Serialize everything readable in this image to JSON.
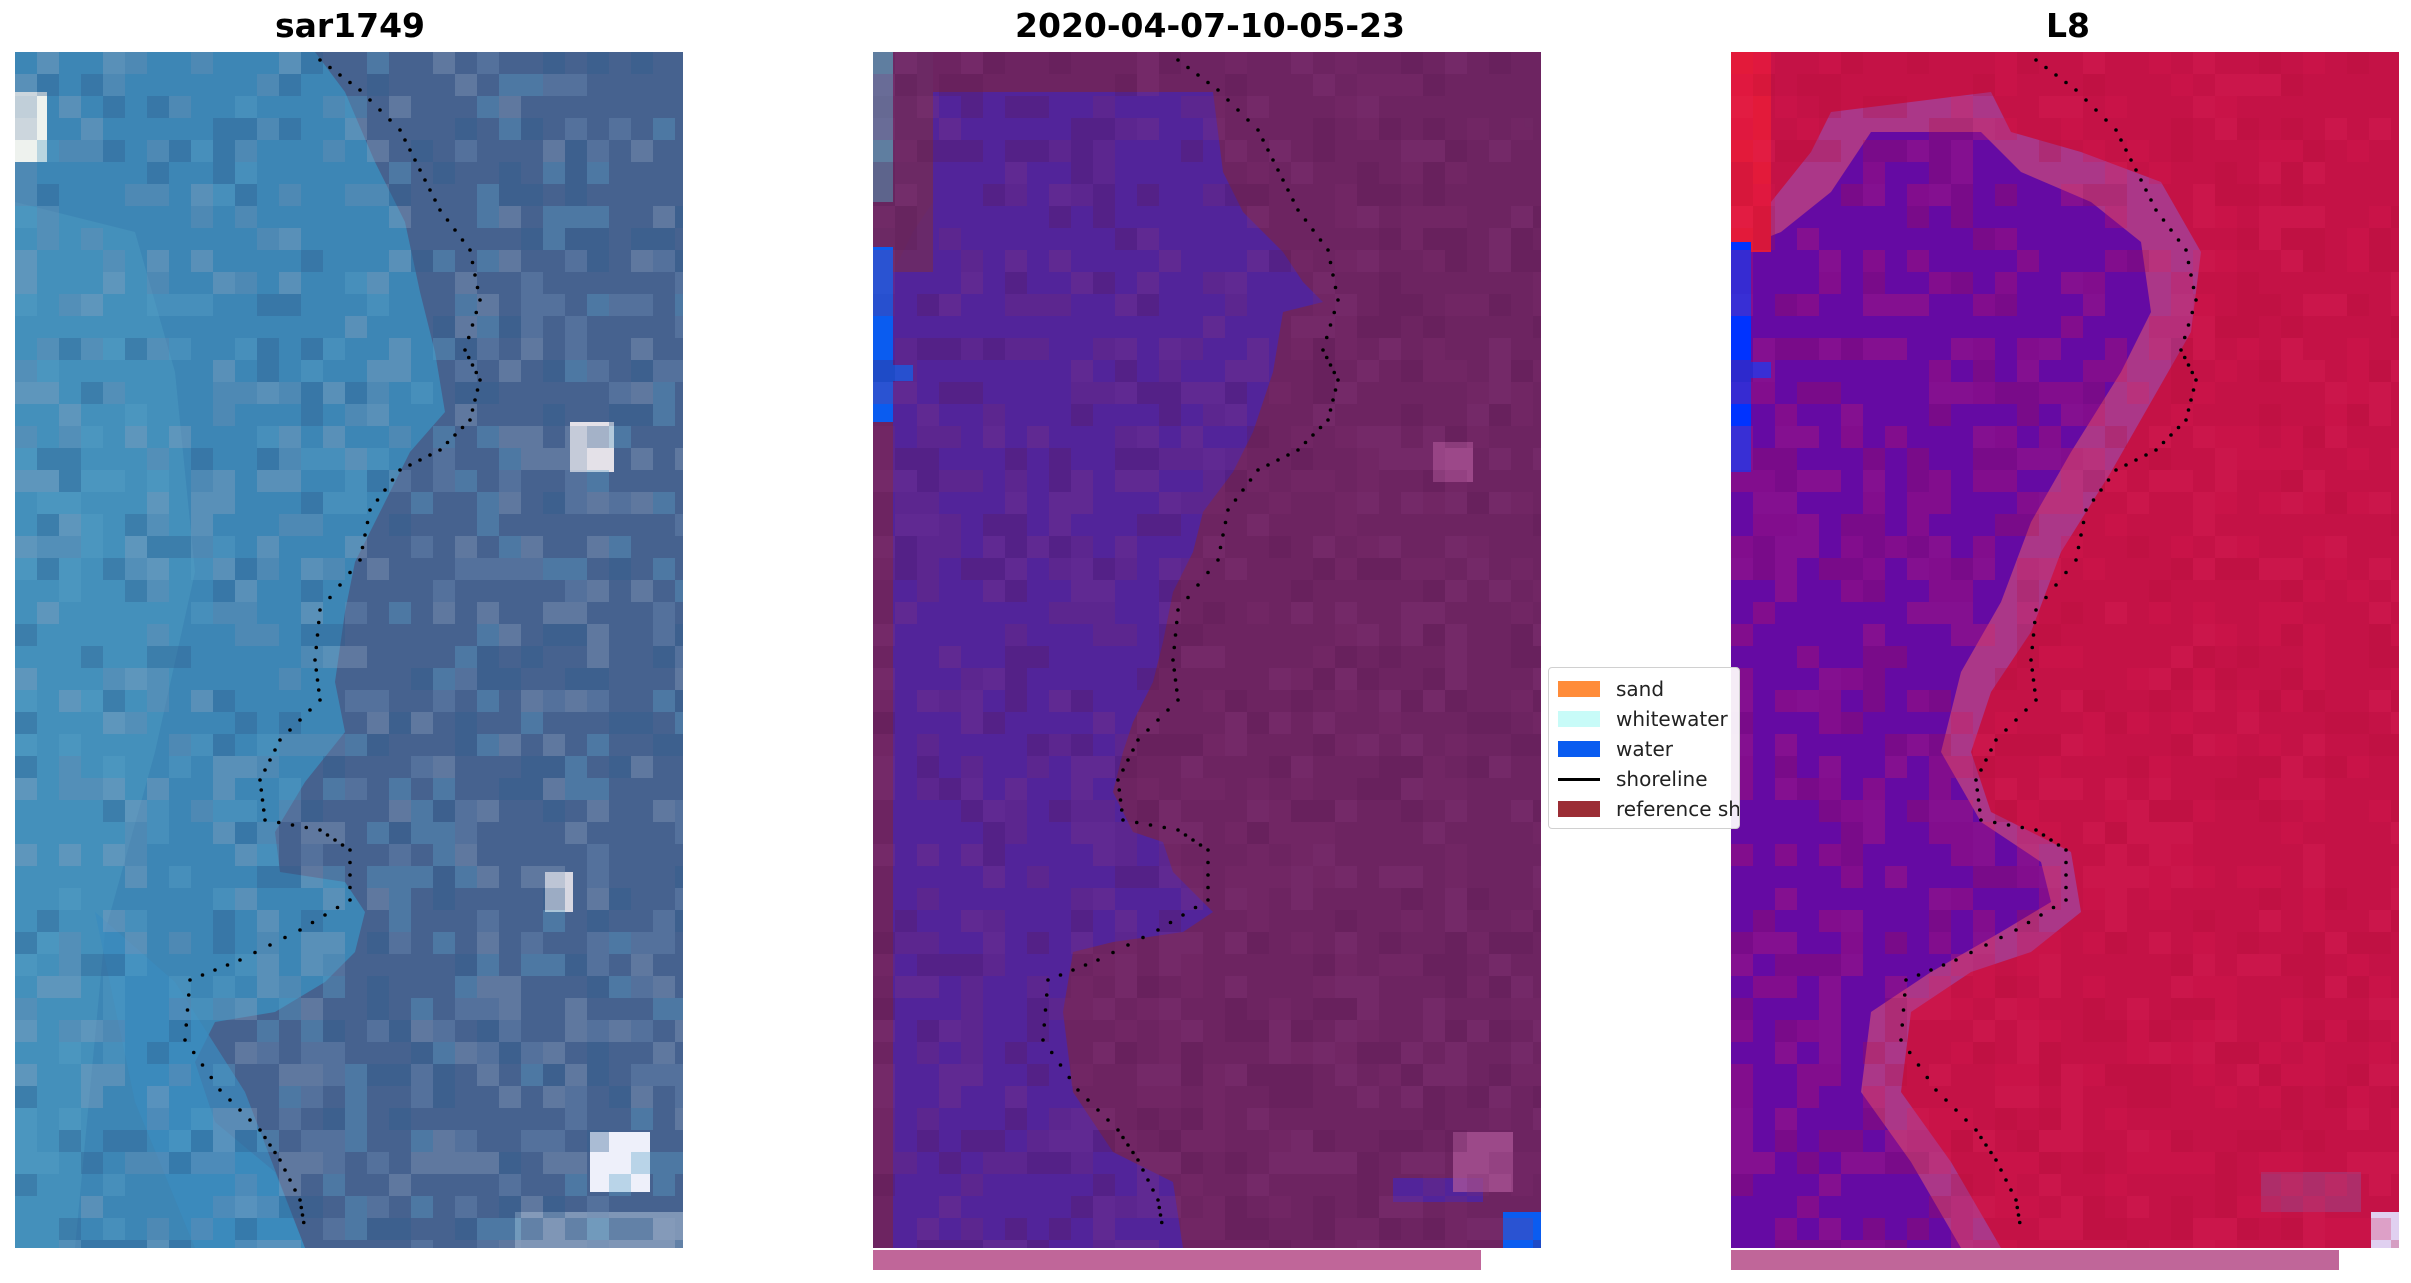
{
  "panels": [
    {
      "title": "sar1749",
      "image": "rgb-satellite-image"
    },
    {
      "title": "2020-04-07-10-05-23",
      "image": "classified-image"
    },
    {
      "title": "L8",
      "image": "mndwi-image"
    }
  ],
  "legend": {
    "items": [
      {
        "label": "sand",
        "color": "#ff8c3a",
        "kind": "patch"
      },
      {
        "label": "whitewater",
        "color": "#c8fbf8",
        "kind": "patch"
      },
      {
        "label": "water",
        "color": "#0a5cf0",
        "kind": "patch"
      },
      {
        "label": "shoreline",
        "color": "#000000",
        "kind": "line"
      },
      {
        "label": "reference shoreline buffer",
        "color": "#9b2d35",
        "kind": "patch"
      }
    ]
  },
  "colors": {
    "rgb_water": "#3d86b5",
    "rgb_land": "#46628f",
    "class_water": "#52249a",
    "class_land": "#6d2461",
    "mndwi_water": "#650aa3",
    "mndwi_land": "#c41246",
    "bottom_strip": "#c06699"
  }
}
